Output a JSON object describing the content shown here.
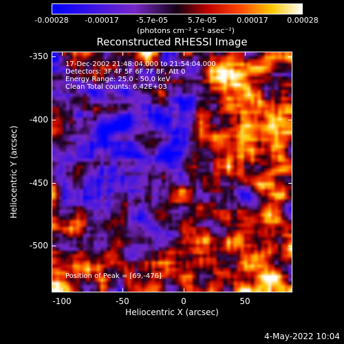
{
  "colorbar": {
    "ticks": [
      "-0.00028",
      "-0.00017",
      "-5.7e-05",
      "5.7e-05",
      "0.00017",
      "0.00028"
    ],
    "units": "(photons cm⁻² s⁻¹ asec⁻²)"
  },
  "title": "Reconstructed RHESSI Image",
  "info": {
    "time": "17-Dec-2002 21:48:04.000 to 21:54:04.000",
    "detectors": "Detectors: 3F 4F 5F 6F 7F 8F, Att 0",
    "energy": "Energy Range: 25.0 - 50.0 keV",
    "method": "Clean     Total counts: 6.42E+03",
    "peak": "Position of Peak = [69,-476]"
  },
  "axes": {
    "ylabel": "Heliocentric Y (arcsec)",
    "xlabel": "Heliocentric X (arcsec)",
    "yticks": [
      "-350",
      "-400",
      "-450",
      "-500"
    ],
    "xticks": [
      "-100",
      "-50",
      "0",
      "50"
    ]
  },
  "timestamp": "4-May-2022 10:04"
}
